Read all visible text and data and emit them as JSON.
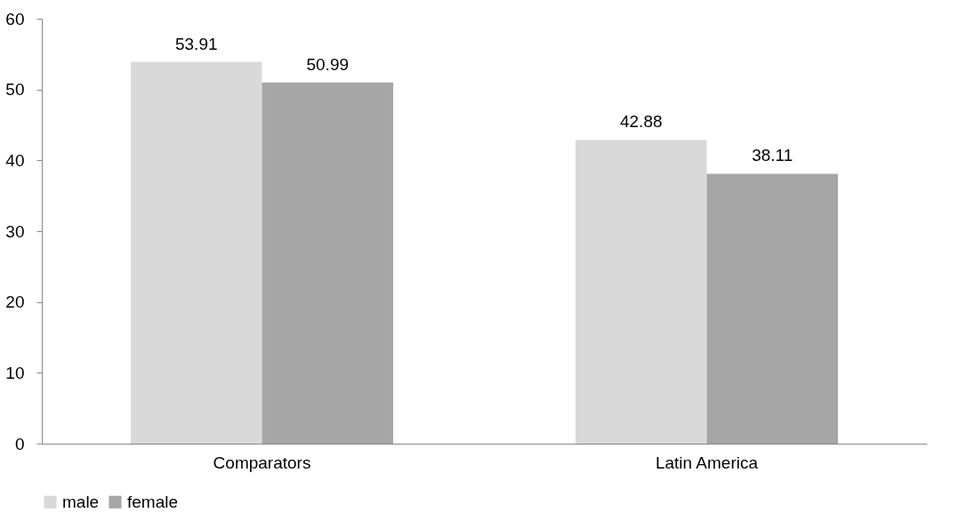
{
  "chart_data": {
    "type": "bar",
    "categories": [
      "Comparators",
      "Latin America"
    ],
    "series": [
      {
        "name": "male",
        "color": "#d9d9d9",
        "values": [
          53.91,
          42.88
        ]
      },
      {
        "name": "female",
        "color": "#a6a6a6",
        "values": [
          50.99,
          38.11
        ]
      }
    ],
    "ylim": [
      0,
      60
    ],
    "yticks": [
      0,
      10,
      20,
      30,
      40,
      50,
      60
    ],
    "grid": false,
    "legend": "bottom",
    "data_labels": true
  }
}
